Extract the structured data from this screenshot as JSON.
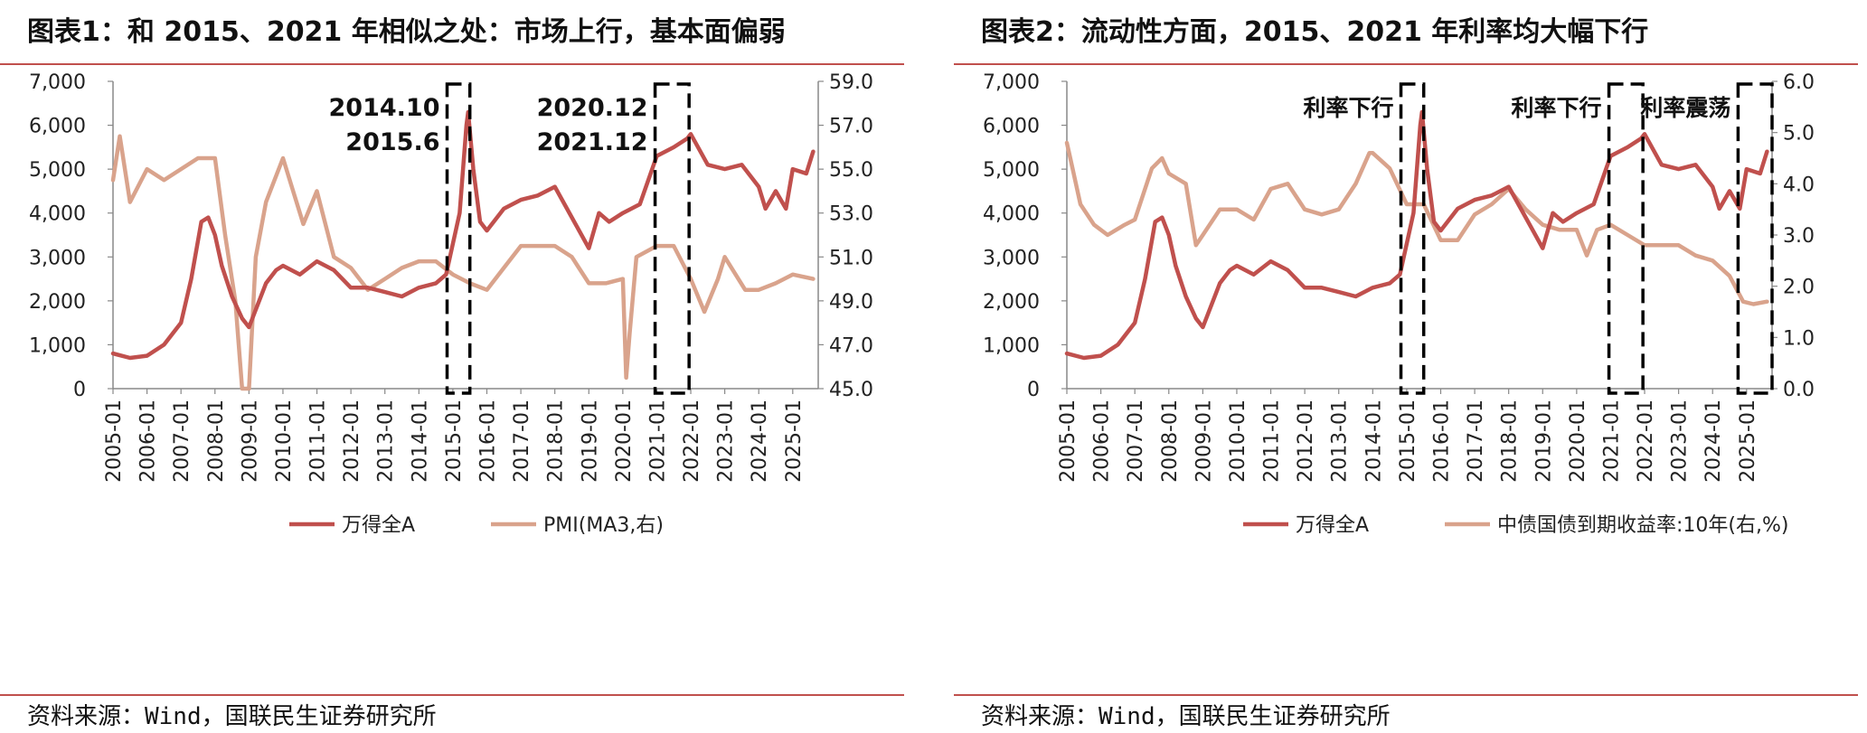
{
  "panels": [
    {
      "title": "图表1：和 2015、2021 年相似之处：市场上行，基本面偏弱",
      "source": "资料来源：Wind，国联民生证券研究所"
    },
    {
      "title": "图表2：流动性方面，2015、2021 年利率均大幅下行",
      "source": "资料来源：Wind，国联民生证券研究所"
    }
  ],
  "chart_data": [
    {
      "type": "line",
      "title": "",
      "xlabel": "",
      "ylabel": "",
      "x_ticks": [
        "2005-01",
        "2006-01",
        "2007-01",
        "2008-01",
        "2009-01",
        "2010-01",
        "2011-01",
        "2012-01",
        "2013-01",
        "2014-01",
        "2015-01",
        "2016-01",
        "2017-01",
        "2018-01",
        "2019-01",
        "2020-01",
        "2021-01",
        "2022-01",
        "2023-01",
        "2024-01",
        "2025-01"
      ],
      "y_left": {
        "min": 0,
        "max": 7000,
        "ticks": [
          "0",
          "1,000",
          "2,000",
          "3,000",
          "4,000",
          "5,000",
          "6,000",
          "7,000"
        ]
      },
      "y_right": {
        "min": 45,
        "max": 59,
        "ticks": [
          "45.0",
          "47.0",
          "49.0",
          "51.0",
          "53.0",
          "55.0",
          "57.0",
          "59.0"
        ]
      },
      "legend": [
        "万得全A",
        "PMI(MA3,右)"
      ],
      "series": [
        {
          "name": "万得全A",
          "axis": "left",
          "color": "#c0504d",
          "x": [
            2005.0,
            2005.5,
            2006.0,
            2006.5,
            2007.0,
            2007.3,
            2007.6,
            2007.8,
            2008.0,
            2008.2,
            2008.5,
            2008.8,
            2009.0,
            2009.5,
            2009.8,
            2010.0,
            2010.5,
            2011.0,
            2011.5,
            2012.0,
            2012.5,
            2013.0,
            2013.5,
            2014.0,
            2014.5,
            2014.8,
            2015.0,
            2015.2,
            2015.4,
            2015.45,
            2015.6,
            2015.8,
            2016.0,
            2016.5,
            2017.0,
            2017.5,
            2018.0,
            2018.5,
            2019.0,
            2019.3,
            2019.6,
            2020.0,
            2020.5,
            2021.0,
            2021.5,
            2021.9,
            2022.0,
            2022.5,
            2023.0,
            2023.5,
            2024.0,
            2024.2,
            2024.5,
            2024.8,
            2025.0,
            2025.4,
            2025.6
          ],
          "y": [
            800,
            700,
            750,
            1000,
            1500,
            2500,
            3800,
            3900,
            3500,
            2800,
            2100,
            1600,
            1400,
            2400,
            2700,
            2800,
            2600,
            2900,
            2700,
            2300,
            2300,
            2200,
            2100,
            2300,
            2400,
            2600,
            3300,
            4000,
            6000,
            6300,
            5000,
            3800,
            3600,
            4100,
            4300,
            4400,
            4600,
            3900,
            3200,
            4000,
            3800,
            4000,
            4200,
            5300,
            5500,
            5700,
            5800,
            5100,
            5000,
            5100,
            4600,
            4100,
            4500,
            4100,
            5000,
            4900,
            5400
          ]
        },
        {
          "name": "PMI(MA3,右)",
          "axis": "right",
          "color": "#d9a38c",
          "x": [
            2005.0,
            2005.2,
            2005.5,
            2006.0,
            2006.5,
            2007.0,
            2007.5,
            2008.0,
            2008.3,
            2008.6,
            2008.8,
            2009.0,
            2009.2,
            2009.5,
            2010.0,
            2010.3,
            2010.6,
            2011.0,
            2011.5,
            2012.0,
            2012.5,
            2013.0,
            2013.5,
            2014.0,
            2014.5,
            2015.0,
            2015.5,
            2016.0,
            2016.5,
            2017.0,
            2017.5,
            2018.0,
            2018.5,
            2019.0,
            2019.5,
            2020.0,
            2020.1,
            2020.2,
            2020.4,
            2021.0,
            2021.5,
            2022.0,
            2022.4,
            2022.8,
            2023.0,
            2023.2,
            2023.6,
            2024.0,
            2024.5,
            2025.0,
            2025.6
          ],
          "y": [
            54.5,
            56.5,
            53.5,
            55.0,
            54.5,
            55.0,
            55.5,
            55.5,
            52.0,
            49.0,
            45.0,
            45.0,
            51.0,
            53.5,
            55.5,
            54.0,
            52.5,
            54.0,
            51.0,
            50.5,
            49.5,
            50.0,
            50.5,
            50.8,
            50.8,
            50.2,
            49.8,
            49.5,
            50.5,
            51.5,
            51.5,
            51.5,
            51.0,
            49.8,
            49.8,
            50.0,
            45.5,
            47.5,
            51.0,
            51.5,
            51.5,
            50.0,
            48.5,
            50.0,
            51.0,
            50.5,
            49.5,
            49.5,
            49.8,
            50.2,
            50.0
          ]
        }
      ],
      "annotations": [
        {
          "lines": [
            "2014.10",
            "2015.6"
          ],
          "from": 2014.83,
          "to": 2015.5
        },
        {
          "lines": [
            "2020.12",
            "2021.12"
          ],
          "from": 2020.95,
          "to": 2021.95
        }
      ]
    },
    {
      "type": "line",
      "title": "",
      "xlabel": "",
      "ylabel": "",
      "x_ticks": [
        "2005-01",
        "2006-01",
        "2007-01",
        "2008-01",
        "2009-01",
        "2010-01",
        "2011-01",
        "2012-01",
        "2013-01",
        "2014-01",
        "2015-01",
        "2016-01",
        "2017-01",
        "2018-01",
        "2019-01",
        "2020-01",
        "2021-01",
        "2022-01",
        "2023-01",
        "2024-01",
        "2025-01"
      ],
      "y_left": {
        "min": 0,
        "max": 7000,
        "ticks": [
          "0",
          "1,000",
          "2,000",
          "3,000",
          "4,000",
          "5,000",
          "6,000",
          "7,000"
        ]
      },
      "y_right": {
        "min": 0,
        "max": 6,
        "ticks": [
          "0.0",
          "1.0",
          "2.0",
          "3.0",
          "4.0",
          "5.0",
          "6.0"
        ]
      },
      "legend": [
        "万得全A",
        "中债国债到期收益率:10年(右,%)"
      ],
      "series": [
        {
          "name": "万得全A",
          "axis": "left",
          "color": "#c0504d",
          "x": [
            2005.0,
            2005.5,
            2006.0,
            2006.5,
            2007.0,
            2007.3,
            2007.6,
            2007.8,
            2008.0,
            2008.2,
            2008.5,
            2008.8,
            2009.0,
            2009.5,
            2009.8,
            2010.0,
            2010.5,
            2011.0,
            2011.5,
            2012.0,
            2012.5,
            2013.0,
            2013.5,
            2014.0,
            2014.5,
            2014.8,
            2015.0,
            2015.2,
            2015.4,
            2015.45,
            2015.6,
            2015.8,
            2016.0,
            2016.5,
            2017.0,
            2017.5,
            2018.0,
            2018.5,
            2019.0,
            2019.3,
            2019.6,
            2020.0,
            2020.5,
            2021.0,
            2021.5,
            2021.9,
            2022.0,
            2022.5,
            2023.0,
            2023.5,
            2024.0,
            2024.2,
            2024.5,
            2024.8,
            2025.0,
            2025.4,
            2025.6
          ],
          "y": [
            800,
            700,
            750,
            1000,
            1500,
            2500,
            3800,
            3900,
            3500,
            2800,
            2100,
            1600,
            1400,
            2400,
            2700,
            2800,
            2600,
            2900,
            2700,
            2300,
            2300,
            2200,
            2100,
            2300,
            2400,
            2600,
            3300,
            4000,
            6000,
            6300,
            5000,
            3800,
            3600,
            4100,
            4300,
            4400,
            4600,
            3900,
            3200,
            4000,
            3800,
            4000,
            4200,
            5300,
            5500,
            5700,
            5800,
            5100,
            5000,
            5100,
            4600,
            4100,
            4500,
            4100,
            5000,
            4900,
            5400
          ]
        },
        {
          "name": "中债国债到期收益率:10年(右,%)",
          "axis": "right",
          "color": "#d9a38c",
          "x": [
            2005.0,
            2005.1,
            2005.4,
            2005.8,
            2006.2,
            2006.7,
            2007.0,
            2007.5,
            2007.8,
            2008.0,
            2008.5,
            2008.8,
            2009.0,
            2009.5,
            2010.0,
            2010.5,
            2011.0,
            2011.5,
            2012.0,
            2012.5,
            2013.0,
            2013.5,
            2013.9,
            2014.0,
            2014.5,
            2015.0,
            2015.5,
            2016.0,
            2016.5,
            2017.0,
            2017.5,
            2018.0,
            2018.5,
            2019.0,
            2019.5,
            2020.0,
            2020.3,
            2020.6,
            2021.0,
            2021.5,
            2022.0,
            2022.5,
            2023.0,
            2023.5,
            2024.0,
            2024.5,
            2024.9,
            2025.2,
            2025.6
          ],
          "y": [
            4.8,
            4.5,
            3.6,
            3.2,
            3.0,
            3.2,
            3.3,
            4.3,
            4.5,
            4.2,
            4.0,
            2.8,
            3.0,
            3.5,
            3.5,
            3.3,
            3.9,
            4.0,
            3.5,
            3.4,
            3.5,
            4.0,
            4.6,
            4.6,
            4.3,
            3.6,
            3.6,
            2.9,
            2.9,
            3.4,
            3.6,
            3.9,
            3.5,
            3.2,
            3.1,
            3.1,
            2.6,
            3.1,
            3.2,
            3.0,
            2.8,
            2.8,
            2.8,
            2.6,
            2.5,
            2.2,
            1.7,
            1.65,
            1.7
          ]
        }
      ],
      "annotations": [
        {
          "lines": [
            "利率下行"
          ],
          "from": 2014.83,
          "to": 2015.5
        },
        {
          "lines": [
            "利率下行"
          ],
          "from": 2020.95,
          "to": 2021.95
        },
        {
          "lines": [
            "利率震荡"
          ],
          "from": 2024.75,
          "to": 2025.75
        }
      ]
    }
  ]
}
